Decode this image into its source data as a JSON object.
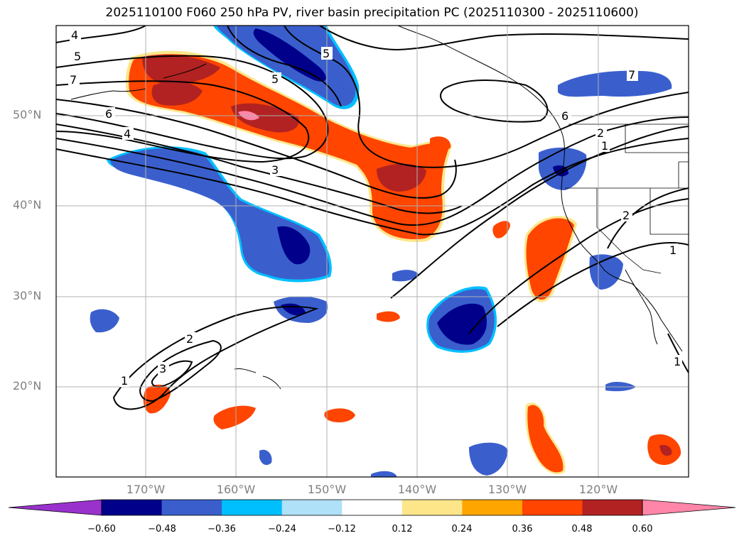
{
  "title": "2025110100 F060 250 hPa PV, river basin precipitation PC (2025110300 - 2025110600)",
  "map": {
    "lon_range": [
      -180,
      -110
    ],
    "lat_range": [
      10,
      60
    ],
    "lat_labels": [
      "50°N",
      "40°N",
      "30°N",
      "20°N"
    ],
    "lon_labels": [
      "170°W",
      "160°W",
      "150°W",
      "140°W",
      "130°W",
      "120°W"
    ],
    "contour_labels": [
      "4",
      "5",
      "7",
      "6",
      "4",
      "3",
      "5",
      "5",
      "7",
      "6",
      "2",
      "1",
      "2",
      "1",
      "2",
      "3",
      "1",
      "1"
    ]
  },
  "colorbar": {
    "ticks": [
      "−0.60",
      "−0.48",
      "−0.36",
      "−0.24",
      "−0.12",
      "0.12",
      "0.24",
      "0.36",
      "0.48",
      "0.60"
    ],
    "colors": [
      "#9932cc",
      "#00008b",
      "#3a5fcd",
      "#00bfff",
      "#afe1f8",
      "#ffffff",
      "#fde68a",
      "#ffa500",
      "#ff4500",
      "#b22222",
      "#ff86a8"
    ]
  }
}
